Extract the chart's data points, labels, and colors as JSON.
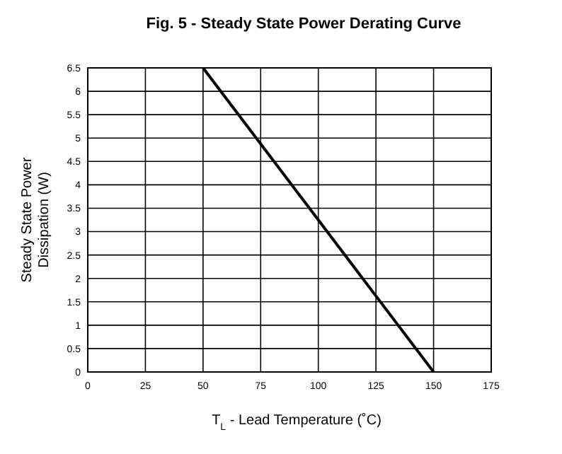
{
  "chart_data": {
    "type": "line",
    "title": "Fig.  5 - Steady State Power Derating Curve",
    "xlabel": "T$_{L}$ - Lead Temperature (˚C)",
    "ylabel": "Steady State Power\nDissipation (W)",
    "x": [
      50,
      150
    ],
    "series": [
      {
        "color": "#000000",
        "values": [
          6.5,
          0
        ]
      }
    ],
    "xlim": [
      0,
      175
    ],
    "xticks": [
      0,
      25,
      50,
      75,
      100,
      125,
      150,
      175
    ],
    "ylim": [
      0,
      6.5
    ],
    "yticks": [
      0,
      0.5,
      1,
      1.5,
      2,
      2.5,
      3,
      3.5,
      4,
      4.5,
      5,
      5.5,
      6,
      6.5
    ],
    "grid": true,
    "marker": "none",
    "line_style": "solid"
  }
}
